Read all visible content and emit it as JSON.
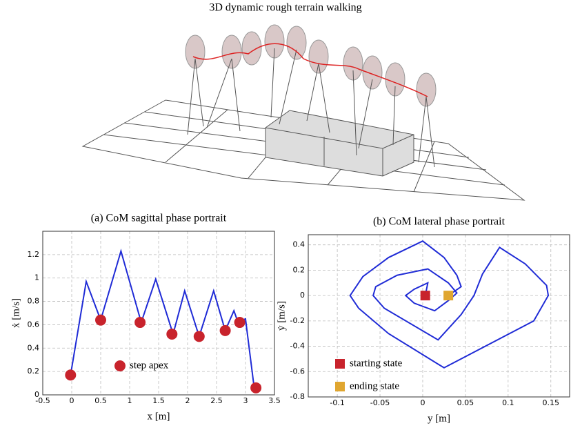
{
  "figure_title": "3D dynamic rough terrain walking",
  "chart_data": [
    {
      "type": "line",
      "title": "(a) CoM sagittal phase portrait",
      "xlabel": "x [m]",
      "ylabel": "ẋ [m/s]",
      "xlim": [
        -0.5,
        3.5
      ],
      "xticks": [
        -0.5,
        0,
        0.5,
        1,
        1.5,
        2,
        2.5,
        3,
        3.5
      ],
      "ylim": [
        0,
        1.4
      ],
      "yticks": [
        0,
        0.2,
        0.4,
        0.6,
        0.8,
        1,
        1.2
      ],
      "grid": true,
      "series": [
        {
          "color": "#1f2bd6",
          "x": [
            -0.02,
            0.25,
            0.5,
            0.85,
            1.2,
            1.45,
            1.75,
            1.95,
            2.2,
            2.45,
            2.65,
            2.8,
            2.85,
            2.9,
            3.0,
            3.15
          ],
          "values": [
            0.17,
            0.97,
            0.64,
            1.23,
            0.62,
            0.99,
            0.52,
            0.89,
            0.5,
            0.89,
            0.55,
            0.72,
            0.65,
            0.63,
            0.65,
            0.06
          ]
        },
        {
          "name": "step apex",
          "color": "#c8232c",
          "marker": "circle",
          "x": [
            -0.02,
            0.5,
            1.18,
            1.73,
            2.2,
            2.65,
            2.9,
            3.18
          ],
          "values": [
            0.17,
            0.64,
            0.62,
            0.52,
            0.5,
            0.55,
            0.62,
            0.06
          ]
        }
      ]
    },
    {
      "type": "line",
      "title": "(b) CoM lateral phase portrait",
      "xlabel": "y [m]",
      "ylabel": "ẏ [m/s]",
      "xlim": [
        -0.134,
        0.172
      ],
      "xticks": [
        -0.1,
        -0.05,
        0,
        0.05,
        0.1,
        0.15
      ],
      "ylim": [
        -0.8,
        0.48
      ],
      "yticks": [
        -0.8,
        -0.6,
        -0.4,
        -0.2,
        0,
        0.2,
        0.4
      ],
      "grid": true,
      "series": [
        {
          "color": "#1f2bd6",
          "x": [
            0.003,
            0.006,
            -0.01,
            -0.02,
            -0.01,
            0.014,
            0.03,
            0.04,
            0.03,
            0.006,
            -0.03,
            -0.055,
            -0.058,
            -0.045,
            0.018,
            0.045,
            0.06,
            0.07,
            0.09,
            0.12,
            0.145,
            0.147,
            0.13,
            0.025,
            -0.04,
            -0.075,
            -0.085,
            -0.07,
            -0.04,
            0.0,
            0.025,
            0.04,
            0.045,
            0.03
          ],
          "values": [
            0.0,
            0.1,
            0.05,
            0.0,
            -0.06,
            -0.12,
            -0.04,
            0.02,
            0.1,
            0.21,
            0.16,
            0.07,
            0.0,
            -0.1,
            -0.35,
            -0.15,
            0.0,
            0.17,
            0.38,
            0.25,
            0.08,
            0.0,
            -0.2,
            -0.57,
            -0.3,
            -0.1,
            0.0,
            0.15,
            0.3,
            0.43,
            0.3,
            0.16,
            0.07,
            0.0
          ]
        },
        {
          "name": "starting state",
          "color": "#c8232c",
          "marker": "square",
          "x": [
            0.003
          ],
          "values": [
            0.0
          ]
        },
        {
          "name": "ending state",
          "color": "#e0a630",
          "marker": "square",
          "x": [
            0.03
          ],
          "values": [
            0.0
          ]
        }
      ]
    }
  ]
}
